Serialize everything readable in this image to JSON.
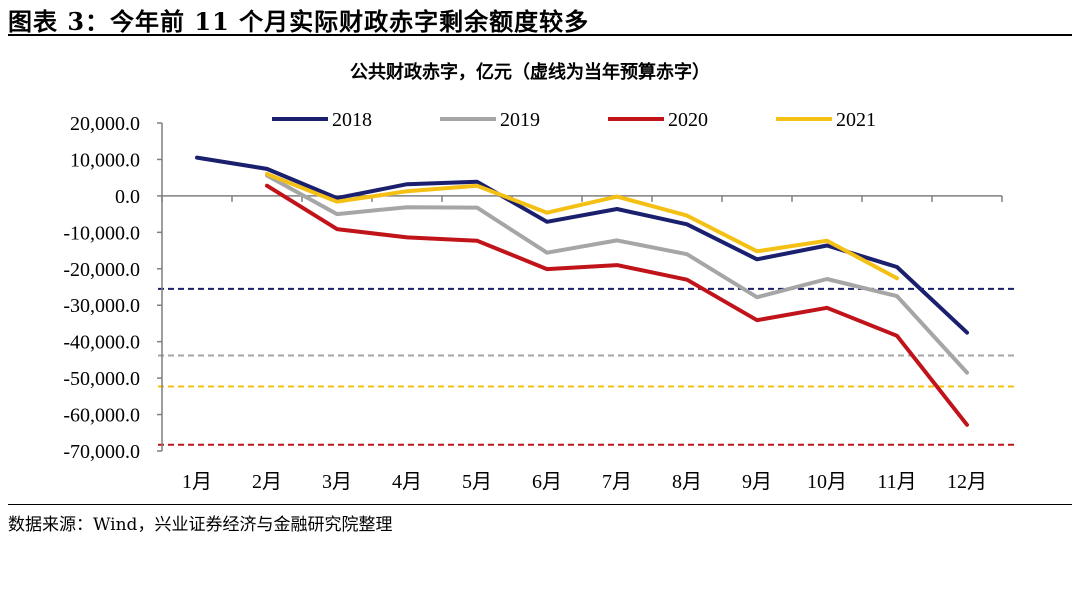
{
  "header": {
    "figure_label": "图表 3：今年前 11 个月实际财政赤字剩余额度较多"
  },
  "source_note": "数据来源：Wind，兴业证券经济与金融研究院整理",
  "chart_data": {
    "type": "line",
    "title": "公共财政赤字，亿元（虚线为当年预算赤字）",
    "categories": [
      "1月",
      "2月",
      "3月",
      "4月",
      "5月",
      "6月",
      "7月",
      "8月",
      "9月",
      "10月",
      "11月",
      "12月"
    ],
    "y_tick_labels": [
      "20,000.0",
      "10,000.0",
      "0.0",
      "-10,000.0",
      "-20,000.0",
      "-30,000.0",
      "-40,000.0",
      "-50,000.0",
      "-60,000.0",
      "-70,000.0"
    ],
    "ylim": [
      -70000,
      20000
    ],
    "ytick_step": 10000,
    "grid": false,
    "legend_position": "top",
    "series": [
      {
        "name": "2018",
        "color": "#1a1f6e",
        "values": [
          10500,
          7400,
          -600,
          3200,
          3900,
          -7100,
          -3600,
          -7800,
          -17400,
          -13600,
          -19500,
          -37500
        ]
      },
      {
        "name": "2019",
        "color": "#a6a6a6",
        "values": [
          null,
          5600,
          -5000,
          -3100,
          -3200,
          -15600,
          -12200,
          -16000,
          -27800,
          -22800,
          -27500,
          -48500
        ]
      },
      {
        "name": "2020",
        "color": "#c0141a",
        "values": [
          null,
          2800,
          -9100,
          -11400,
          -12300,
          -20100,
          -19000,
          -23000,
          -34100,
          -30700,
          -38400,
          -62800
        ]
      },
      {
        "name": "2021",
        "color": "#f5c014",
        "values": [
          null,
          6000,
          -1600,
          1300,
          2800,
          -4600,
          -200,
          -5400,
          -15200,
          -12300,
          -22600,
          null
        ]
      }
    ],
    "budget_deficits": [
      {
        "year": "2018",
        "value": -25500,
        "color": "#1a1f6e"
      },
      {
        "year": "2019",
        "value": -43800,
        "color": "#a6a6a6"
      },
      {
        "year": "2020",
        "value": -68300,
        "color": "#c0141a"
      },
      {
        "year": "2021",
        "value": -52300,
        "color": "#f5c014"
      }
    ]
  }
}
